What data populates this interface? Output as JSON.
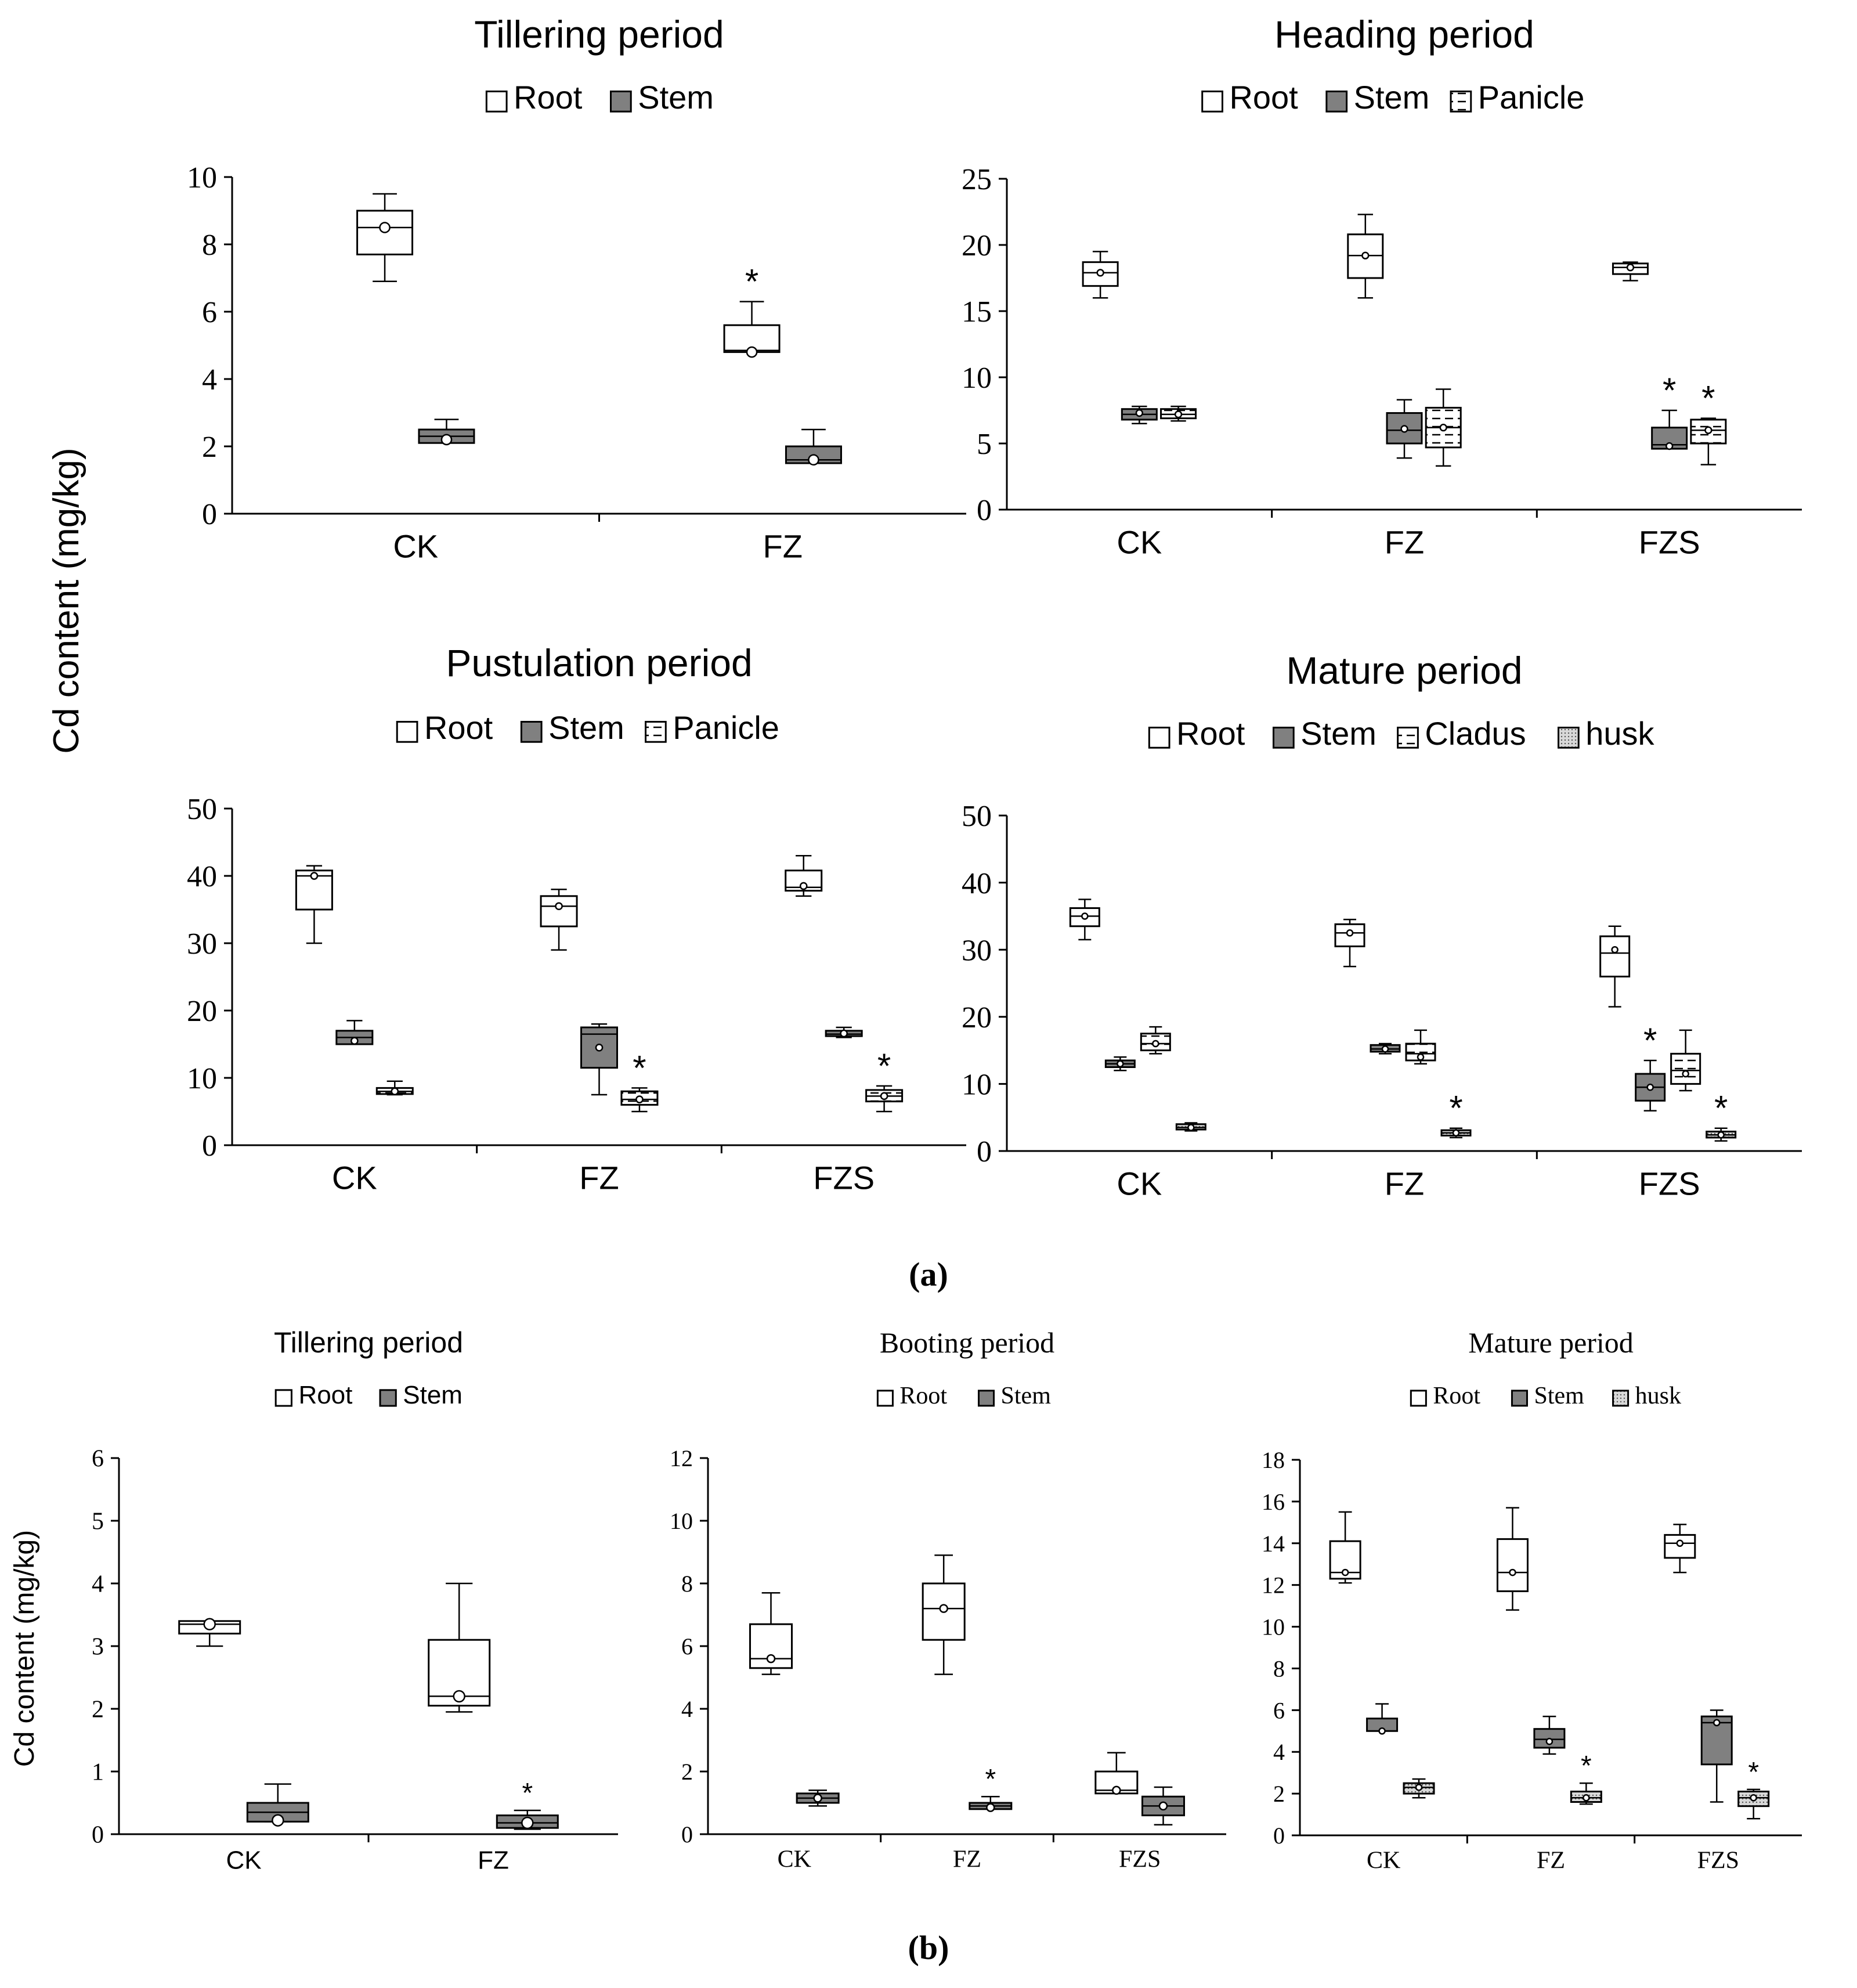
{
  "figure": {
    "y_axis_label_a": "Cd content (mg/kg)",
    "y_axis_label_b": "Cd content (mg/kg)",
    "panel_a_label": "(a)",
    "panel_b_label": "(b)"
  },
  "colors": {
    "root_fill": "#ffffff",
    "stem_fill": "#808080",
    "panicle_fill": "#ffffff",
    "husk_fill": "#c8c8c8",
    "stroke": "#000000",
    "background": "#ffffff"
  },
  "chart_data": [
    {
      "id": "a-tillering",
      "type": "box",
      "title": "Tillering period",
      "categories": [
        "CK",
        "FZ"
      ],
      "ylim": [
        0,
        10
      ],
      "yticks": [
        0,
        2,
        4,
        6,
        8,
        10
      ],
      "legend": [
        "Root",
        "Stem"
      ],
      "series": [
        {
          "name": "Root",
          "fill": "root",
          "boxes": [
            {
              "min": 6.9,
              "q1": 7.7,
              "median": 8.5,
              "q3": 9.0,
              "max": 9.5,
              "mean": 8.5,
              "star": false
            },
            {
              "min": 4.8,
              "q1": 4.8,
              "median": 4.85,
              "q3": 5.6,
              "max": 6.3,
              "mean": 4.8,
              "star": true
            }
          ]
        },
        {
          "name": "Stem",
          "fill": "stem",
          "boxes": [
            {
              "min": 2.1,
              "q1": 2.1,
              "median": 2.3,
              "q3": 2.5,
              "max": 2.8,
              "mean": 2.2,
              "star": false
            },
            {
              "min": 1.5,
              "q1": 1.5,
              "median": 1.6,
              "q3": 2.0,
              "max": 2.5,
              "mean": 1.6,
              "star": false
            }
          ]
        }
      ]
    },
    {
      "id": "a-heading",
      "type": "box",
      "title": "Heading period",
      "categories": [
        "CK",
        "FZ",
        "FZS"
      ],
      "ylim": [
        0,
        25
      ],
      "yticks": [
        0,
        5,
        10,
        15,
        20,
        25
      ],
      "legend": [
        "Root",
        "Stem",
        "Panicle"
      ],
      "series": [
        {
          "name": "Root",
          "fill": "root",
          "boxes": [
            {
              "min": 16.0,
              "q1": 16.9,
              "median": 17.9,
              "q3": 18.7,
              "max": 19.5,
              "mean": 17.9,
              "star": false
            },
            {
              "min": 16.0,
              "q1": 17.5,
              "median": 19.2,
              "q3": 20.8,
              "max": 22.3,
              "mean": 19.2,
              "star": false
            },
            {
              "min": 17.3,
              "q1": 17.8,
              "median": 18.3,
              "q3": 18.6,
              "max": 18.7,
              "mean": 18.3,
              "star": false
            }
          ]
        },
        {
          "name": "Stem",
          "fill": "stem",
          "boxes": [
            {
              "min": 6.5,
              "q1": 6.8,
              "median": 7.2,
              "q3": 7.6,
              "max": 7.8,
              "mean": 7.3,
              "star": false
            },
            {
              "min": 3.9,
              "q1": 5.0,
              "median": 6.0,
              "q3": 7.3,
              "max": 8.3,
              "mean": 6.1,
              "star": false
            },
            {
              "min": 4.6,
              "q1": 4.6,
              "median": 4.9,
              "q3": 6.2,
              "max": 7.5,
              "mean": 4.8,
              "star": true
            }
          ]
        },
        {
          "name": "Panicle",
          "fill": "panicle",
          "boxes": [
            {
              "min": 6.7,
              "q1": 6.9,
              "median": 7.2,
              "q3": 7.6,
              "max": 7.8,
              "mean": 7.2,
              "star": false
            },
            {
              "min": 3.3,
              "q1": 4.7,
              "median": 6.2,
              "q3": 7.7,
              "max": 9.1,
              "mean": 6.2,
              "star": false
            },
            {
              "min": 3.4,
              "q1": 5.0,
              "median": 6.0,
              "q3": 6.8,
              "max": 6.9,
              "mean": 6.0,
              "star": true
            }
          ]
        }
      ]
    },
    {
      "id": "a-pustulation",
      "type": "box",
      "title": "Pustulation period",
      "categories": [
        "CK",
        "FZ",
        "FZS"
      ],
      "ylim": [
        0,
        50
      ],
      "yticks": [
        0,
        10,
        20,
        30,
        40,
        50
      ],
      "legend": [
        "Root",
        "Stem",
        "Panicle"
      ],
      "series": [
        {
          "name": "Root",
          "fill": "root",
          "boxes": [
            {
              "min": 30.0,
              "q1": 35.0,
              "median": 40.0,
              "q3": 40.8,
              "max": 41.5,
              "mean": 40.0,
              "star": false
            },
            {
              "min": 29.0,
              "q1": 32.5,
              "median": 35.5,
              "q3": 37.0,
              "max": 38.0,
              "mean": 35.5,
              "star": false
            },
            {
              "min": 37.0,
              "q1": 37.8,
              "median": 38.3,
              "q3": 40.8,
              "max": 43.0,
              "mean": 38.5,
              "star": false
            }
          ]
        },
        {
          "name": "Stem",
          "fill": "stem",
          "boxes": [
            {
              "min": 15.0,
              "q1": 15.0,
              "median": 16.0,
              "q3": 17.0,
              "max": 18.5,
              "mean": 15.5,
              "star": false
            },
            {
              "min": 7.5,
              "q1": 11.5,
              "median": 16.5,
              "q3": 17.5,
              "max": 18.0,
              "mean": 14.5,
              "star": false
            },
            {
              "min": 16.0,
              "q1": 16.2,
              "median": 16.5,
              "q3": 17.0,
              "max": 17.5,
              "mean": 16.6,
              "star": false
            }
          ]
        },
        {
          "name": "Panicle",
          "fill": "panicle",
          "boxes": [
            {
              "min": 7.5,
              "q1": 7.6,
              "median": 8.0,
              "q3": 8.5,
              "max": 9.5,
              "mean": 8.0,
              "star": false
            },
            {
              "min": 5.0,
              "q1": 6.0,
              "median": 6.8,
              "q3": 8.0,
              "max": 8.5,
              "mean": 6.8,
              "star": true
            },
            {
              "min": 5.0,
              "q1": 6.5,
              "median": 7.3,
              "q3": 8.2,
              "max": 8.8,
              "mean": 7.3,
              "star": true
            }
          ]
        }
      ]
    },
    {
      "id": "a-mature",
      "type": "box",
      "title": "Mature period",
      "categories": [
        "CK",
        "FZ",
        "FZS"
      ],
      "ylim": [
        0,
        50
      ],
      "yticks": [
        0,
        10,
        20,
        30,
        40,
        50
      ],
      "legend": [
        "Root",
        "Stem",
        "Cladus",
        "husk"
      ],
      "series": [
        {
          "name": "Root",
          "fill": "root",
          "boxes": [
            {
              "min": 31.5,
              "q1": 33.5,
              "median": 35.0,
              "q3": 36.2,
              "max": 37.5,
              "mean": 35.0,
              "star": false
            },
            {
              "min": 27.5,
              "q1": 30.5,
              "median": 32.5,
              "q3": 33.8,
              "max": 34.5,
              "mean": 32.5,
              "star": false
            },
            {
              "min": 21.5,
              "q1": 26.0,
              "median": 29.5,
              "q3": 32.0,
              "max": 33.5,
              "mean": 30.0,
              "star": false
            }
          ]
        },
        {
          "name": "Stem",
          "fill": "stem",
          "boxes": [
            {
              "min": 12.0,
              "q1": 12.5,
              "median": 13.0,
              "q3": 13.5,
              "max": 14.0,
              "mean": 13.0,
              "star": false
            },
            {
              "min": 14.5,
              "q1": 14.8,
              "median": 15.2,
              "q3": 15.8,
              "max": 16.0,
              "mean": 15.2,
              "star": false
            },
            {
              "min": 6.0,
              "q1": 7.5,
              "median": 9.5,
              "q3": 11.5,
              "max": 13.5,
              "mean": 9.5,
              "star": true
            }
          ]
        },
        {
          "name": "Cladus",
          "fill": "panicle",
          "boxes": [
            {
              "min": 14.5,
              "q1": 15.0,
              "median": 16.0,
              "q3": 17.5,
              "max": 18.5,
              "mean": 16.0,
              "star": false
            },
            {
              "min": 13.0,
              "q1": 13.5,
              "median": 14.5,
              "q3": 16.0,
              "max": 18.0,
              "mean": 14.0,
              "star": false
            },
            {
              "min": 9.0,
              "q1": 10.0,
              "median": 12.0,
              "q3": 14.5,
              "max": 18.0,
              "mean": 11.5,
              "star": false
            }
          ]
        },
        {
          "name": "husk",
          "fill": "husk",
          "boxes": [
            {
              "min": 3.0,
              "q1": 3.2,
              "median": 3.5,
              "q3": 4.0,
              "max": 4.2,
              "mean": 3.5,
              "star": false
            },
            {
              "min": 2.0,
              "q1": 2.3,
              "median": 2.7,
              "q3": 3.1,
              "max": 3.4,
              "mean": 2.7,
              "star": true
            },
            {
              "min": 1.5,
              "q1": 2.0,
              "median": 2.4,
              "q3": 2.9,
              "max": 3.4,
              "mean": 2.4,
              "star": true
            }
          ]
        }
      ]
    },
    {
      "id": "b-tillering",
      "type": "box",
      "title": "Tillering period",
      "categories": [
        "CK",
        "FZ"
      ],
      "ylim": [
        0,
        6
      ],
      "yticks": [
        0,
        1,
        2,
        3,
        4,
        5,
        6
      ],
      "legend": [
        "Root",
        "Stem"
      ],
      "series": [
        {
          "name": "Root",
          "fill": "root",
          "boxes": [
            {
              "min": 3.0,
              "q1": 3.2,
              "median": 3.35,
              "q3": 3.4,
              "max": 3.4,
              "mean": 3.35,
              "star": false
            },
            {
              "min": 1.95,
              "q1": 2.05,
              "median": 2.2,
              "q3": 3.1,
              "max": 4.0,
              "mean": 2.2,
              "star": false
            }
          ]
        },
        {
          "name": "Stem",
          "fill": "stem",
          "boxes": [
            {
              "min": 0.2,
              "q1": 0.2,
              "median": 0.35,
              "q3": 0.5,
              "max": 0.8,
              "mean": 0.22,
              "star": false
            },
            {
              "min": 0.08,
              "q1": 0.1,
              "median": 0.18,
              "q3": 0.3,
              "max": 0.38,
              "mean": 0.18,
              "star": true
            }
          ]
        }
      ]
    },
    {
      "id": "b-booting",
      "type": "box",
      "title": "Booting period",
      "categories": [
        "CK",
        "FZ",
        "FZS"
      ],
      "ylim": [
        0,
        12
      ],
      "yticks": [
        0,
        2,
        4,
        6,
        8,
        10,
        12
      ],
      "legend": [
        "Root",
        "Stem"
      ],
      "series": [
        {
          "name": "Root",
          "fill": "root",
          "boxes": [
            {
              "min": 5.1,
              "q1": 5.3,
              "median": 5.6,
              "q3": 6.7,
              "max": 7.7,
              "mean": 5.6,
              "star": false
            },
            {
              "min": 5.1,
              "q1": 6.2,
              "median": 7.2,
              "q3": 8.0,
              "max": 8.9,
              "mean": 7.2,
              "star": false
            },
            {
              "min": 1.3,
              "q1": 1.3,
              "median": 1.4,
              "q3": 2.0,
              "max": 2.6,
              "mean": 1.4,
              "star": false
            }
          ]
        },
        {
          "name": "Stem",
          "fill": "stem",
          "boxes": [
            {
              "min": 0.9,
              "q1": 1.0,
              "median": 1.15,
              "q3": 1.3,
              "max": 1.4,
              "mean": 1.15,
              "star": false
            },
            {
              "min": 0.8,
              "q1": 0.8,
              "median": 0.9,
              "q3": 1.0,
              "max": 1.2,
              "mean": 0.85,
              "star": true
            },
            {
              "min": 0.3,
              "q1": 0.6,
              "median": 0.9,
              "q3": 1.2,
              "max": 1.5,
              "mean": 0.9,
              "star": false
            }
          ]
        }
      ]
    },
    {
      "id": "b-mature",
      "type": "box",
      "title": "Mature period",
      "categories": [
        "CK",
        "FZ",
        "FZS"
      ],
      "ylim": [
        0,
        18
      ],
      "yticks": [
        0,
        2,
        4,
        6,
        8,
        10,
        12,
        14,
        16,
        18
      ],
      "legend": [
        "Root",
        "Stem",
        "husk"
      ],
      "series": [
        {
          "name": "Root",
          "fill": "root",
          "boxes": [
            {
              "min": 12.1,
              "q1": 12.3,
              "median": 12.6,
              "q3": 14.1,
              "max": 15.5,
              "mean": 12.6,
              "star": false
            },
            {
              "min": 10.8,
              "q1": 11.7,
              "median": 12.6,
              "q3": 14.2,
              "max": 15.7,
              "mean": 12.6,
              "star": false
            },
            {
              "min": 12.6,
              "q1": 13.3,
              "median": 14.0,
              "q3": 14.4,
              "max": 14.9,
              "mean": 14.0,
              "star": false
            }
          ]
        },
        {
          "name": "Stem",
          "fill": "stem",
          "boxes": [
            {
              "min": 5.0,
              "q1": 5.0,
              "median": 5.0,
              "q3": 5.6,
              "max": 6.3,
              "mean": 5.0,
              "star": false
            },
            {
              "min": 3.9,
              "q1": 4.2,
              "median": 4.6,
              "q3": 5.1,
              "max": 5.7,
              "mean": 4.5,
              "star": false
            },
            {
              "min": 1.6,
              "q1": 3.4,
              "median": 5.4,
              "q3": 5.7,
              "max": 6.0,
              "mean": 5.4,
              "star": false
            }
          ]
        },
        {
          "name": "husk",
          "fill": "husk",
          "boxes": [
            {
              "min": 1.8,
              "q1": 2.0,
              "median": 2.3,
              "q3": 2.5,
              "max": 2.7,
              "mean": 2.3,
              "star": false
            },
            {
              "min": 1.5,
              "q1": 1.6,
              "median": 1.8,
              "q3": 2.1,
              "max": 2.5,
              "mean": 1.8,
              "star": true
            },
            {
              "min": 0.8,
              "q1": 1.4,
              "median": 1.8,
              "q3": 2.1,
              "max": 2.2,
              "mean": 1.8,
              "star": true
            }
          ]
        }
      ]
    }
  ]
}
